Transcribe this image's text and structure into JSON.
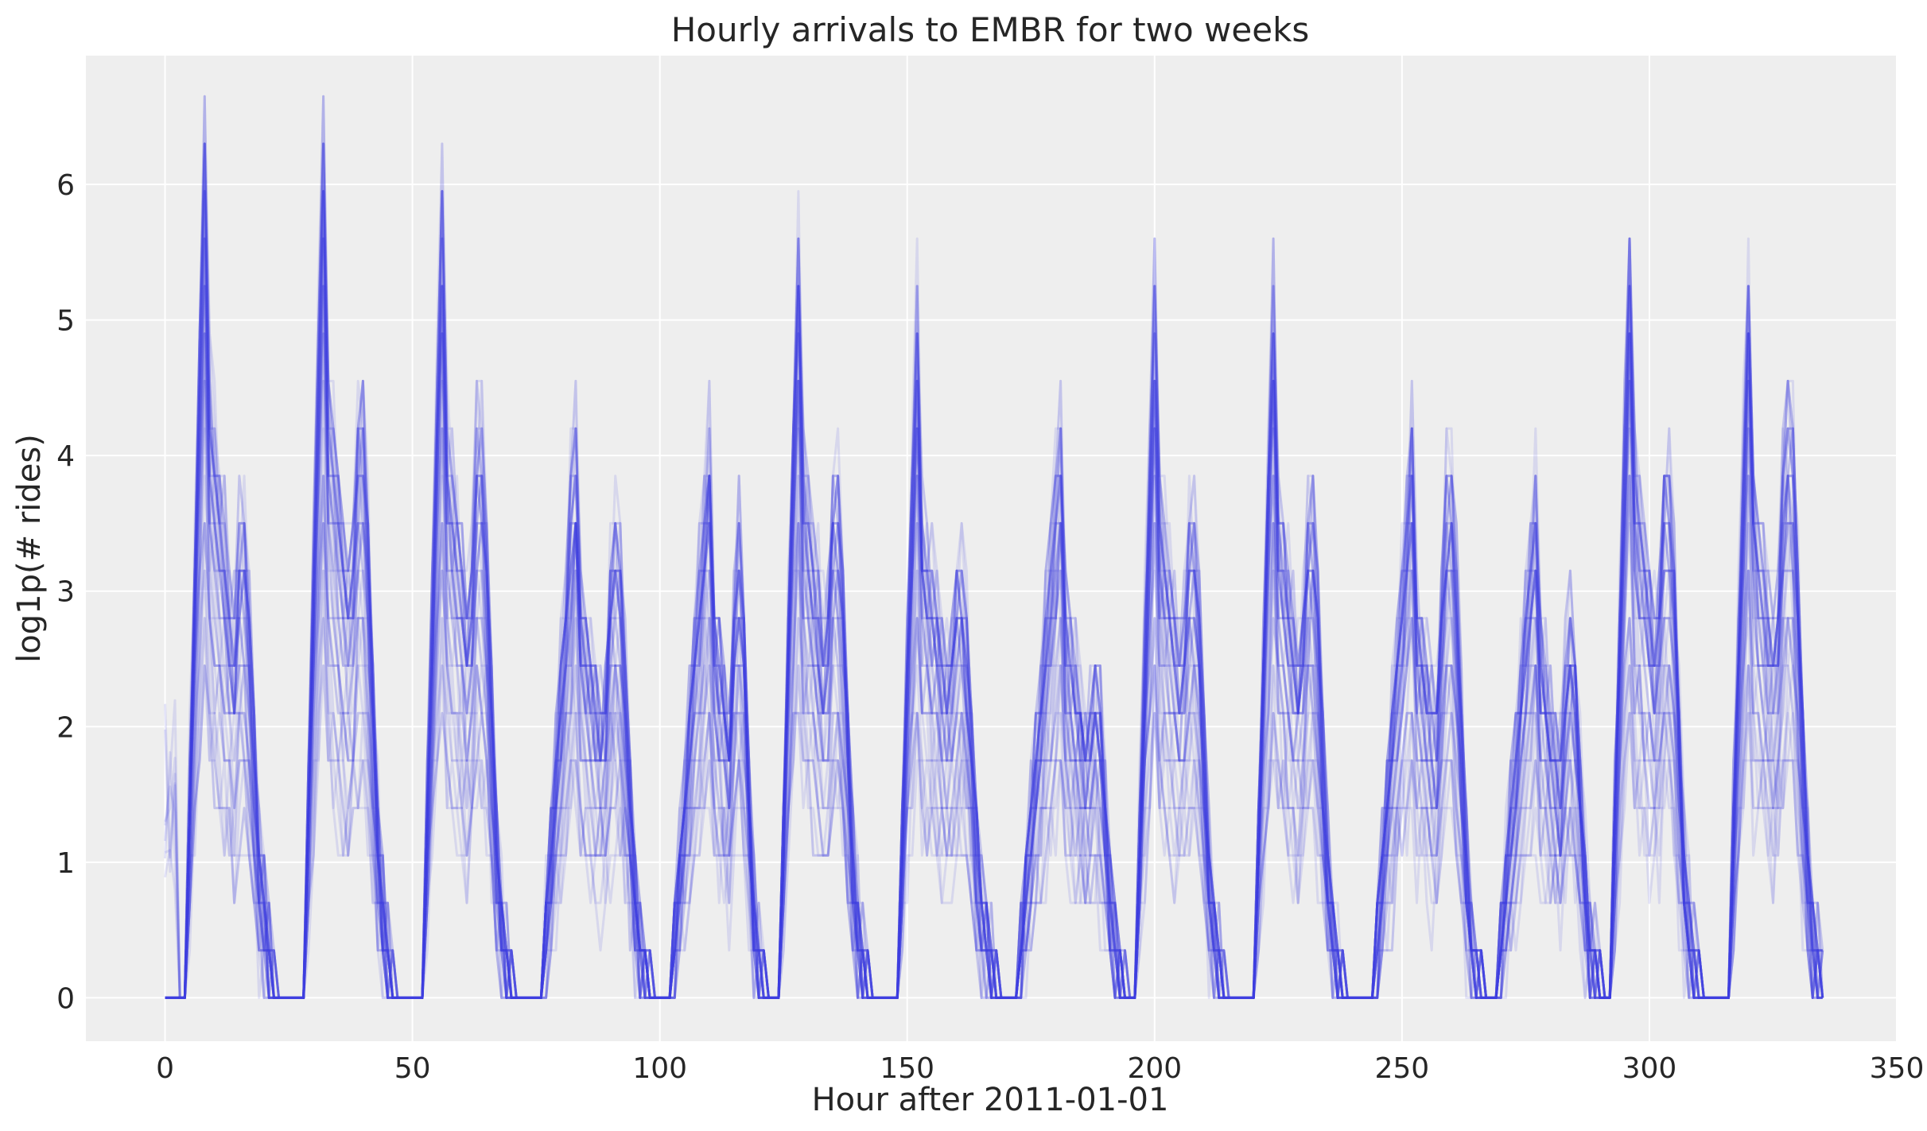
{
  "chart_data": {
    "type": "line",
    "title": "Hourly arrivals to EMBR for two weeks",
    "xlabel": "Hour after 2011-01-01",
    "ylabel": "log1p(# rides)",
    "xlim": [
      -16,
      350
    ],
    "ylim": [
      -0.32,
      6.95
    ],
    "xticks": [
      0,
      50,
      100,
      150,
      200,
      250,
      300,
      350
    ],
    "yticks": [
      0,
      1,
      2,
      3,
      4,
      5,
      6
    ],
    "grid": true,
    "legend": "none",
    "hours": 336,
    "series_count": 50,
    "line_color": "#3f3fe0",
    "line_opacity": 0.13,
    "background_color": "#eeeeee",
    "grid_color": "#ffffff",
    "day_peaks": [
      {
        "day": 0,
        "start": 5,
        "end": 22,
        "peak_hour": 8,
        "peak": 6.6,
        "second_peak": 4.4
      },
      {
        "day": 1,
        "start": 29,
        "end": 46,
        "peak_hour": 32,
        "peak": 6.6,
        "second_peak": 5.4
      },
      {
        "day": 2,
        "start": 53,
        "end": 70,
        "peak_hour": 56,
        "peak": 6.1,
        "second_peak": 5.2
      },
      {
        "day": 3,
        "start": 77,
        "end": 98,
        "peak_hour": 83,
        "peak": 4.4,
        "second_peak": 4.2
      },
      {
        "day": 4,
        "start": 103,
        "end": 121,
        "peak_hour": 110,
        "peak": 4.3,
        "second_peak": 4.3
      },
      {
        "day": 5,
        "start": 125,
        "end": 142,
        "peak_hour": 128,
        "peak": 5.8,
        "second_peak": 4.7
      },
      {
        "day": 6,
        "start": 149,
        "end": 168,
        "peak_hour": 152,
        "peak": 5.2,
        "second_peak": 3.9
      },
      {
        "day": 7,
        "start": 173,
        "end": 194,
        "peak_hour": 181,
        "peak": 4.3,
        "second_peak": 3.0
      },
      {
        "day": 8,
        "start": 197,
        "end": 214,
        "peak_hour": 200,
        "peak": 5.4,
        "second_peak": 4.4
      },
      {
        "day": 9,
        "start": 221,
        "end": 238,
        "peak_hour": 224,
        "peak": 5.4,
        "second_peak": 4.5
      },
      {
        "day": 10,
        "start": 245,
        "end": 266,
        "peak_hour": 252,
        "peak": 4.3,
        "second_peak": 4.8
      },
      {
        "day": 11,
        "start": 270,
        "end": 290,
        "peak_hour": 277,
        "peak": 3.9,
        "second_peak": 3.4
      },
      {
        "day": 12,
        "start": 293,
        "end": 310,
        "peak_hour": 296,
        "peak": 5.8,
        "second_peak": 4.8
      },
      {
        "day": 13,
        "start": 317,
        "end": 335,
        "peak_hour": 320,
        "peak": 5.5,
        "second_peak": 5.4
      }
    ]
  }
}
